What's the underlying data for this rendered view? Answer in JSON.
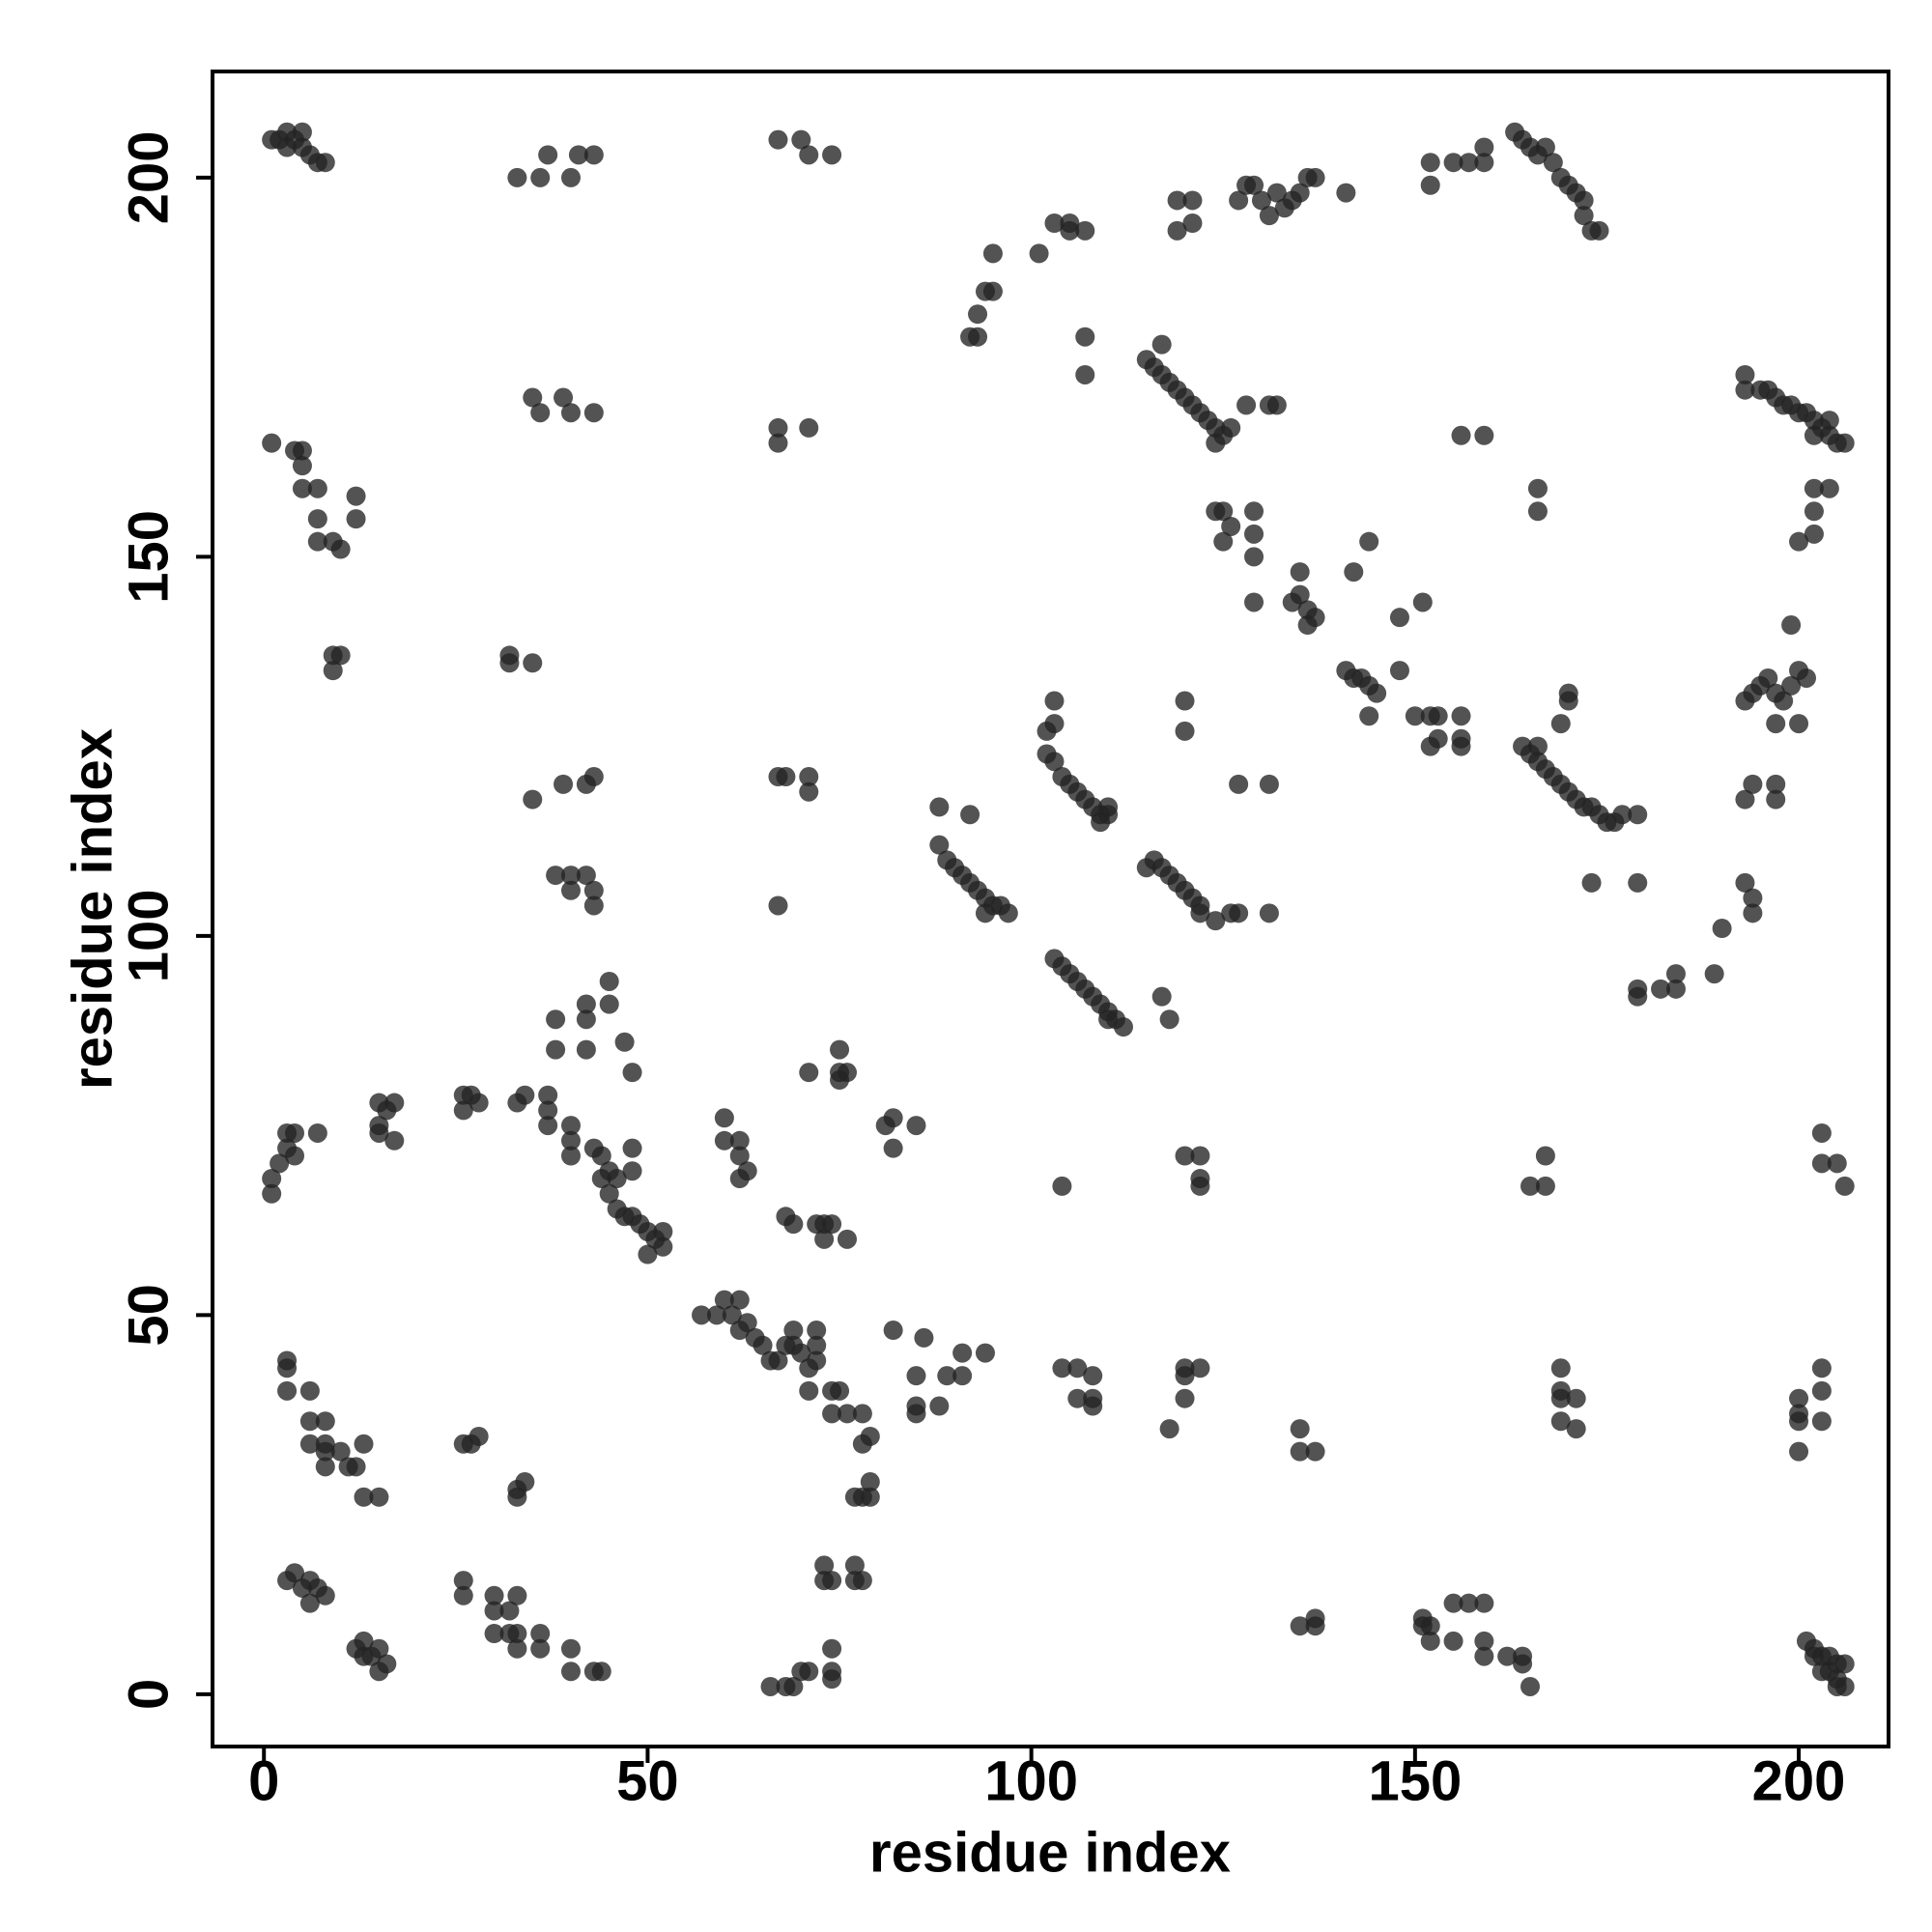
{
  "chart_data": {
    "type": "scatter",
    "x_label": "residue index",
    "y_label": "residue index",
    "xlim": [
      -6.7,
      211.7
    ],
    "ylim": [
      -6.9,
      214.0
    ],
    "xticks": [
      0,
      50,
      100,
      150,
      200
    ],
    "yticks": [
      0,
      50,
      100,
      150,
      200
    ],
    "grid": false,
    "series": [
      {
        "color": "#222222",
        "x": [
          1,
          2,
          3,
          4,
          5,
          6,
          7,
          8,
          3,
          5,
          33,
          36,
          37,
          40,
          41,
          43,
          67,
          70,
          71,
          74,
          92,
          93,
          93,
          94,
          95,
          95,
          101,
          103,
          105,
          105,
          107,
          107,
          107,
          119,
          121,
          119,
          121,
          127,
          128,
          129,
          130,
          131,
          132,
          133,
          134,
          135,
          136,
          137,
          141,
          152,
          152,
          155,
          157,
          159,
          159,
          163,
          164,
          165,
          166,
          167,
          168,
          169,
          170,
          171,
          172,
          173,
          174,
          172,
          1,
          4,
          5,
          5,
          5,
          7,
          7,
          7,
          9,
          10,
          12,
          12,
          9,
          10,
          9,
          35,
          36,
          39,
          40,
          43,
          67,
          67,
          71,
          115,
          116,
          117,
          117,
          118,
          119,
          120,
          121,
          122,
          123,
          124,
          125,
          124,
          126,
          128,
          131,
          132,
          193,
          193,
          195,
          196,
          197,
          198,
          199,
          200,
          201,
          202,
          203,
          204,
          205,
          206,
          202,
          204,
          156,
          159,
          166,
          166,
          202,
          204,
          202,
          202,
          200,
          124,
          125,
          126,
          125,
          129,
          129,
          129,
          129,
          134,
          135,
          136,
          136,
          137,
          135,
          142,
          144,
          141,
          142,
          143,
          144,
          145,
          144,
          148,
          148,
          150,
          152,
          153,
          152,
          153,
          156,
          156,
          156,
          151,
          164,
          165,
          166,
          166,
          167,
          168,
          169,
          170,
          171,
          172,
          173,
          174,
          175,
          176,
          177,
          179,
          169,
          170,
          170,
          173,
          179,
          193,
          194,
          195,
          196,
          197,
          198,
          199,
          200,
          201,
          197,
          200,
          199,
          193,
          194,
          197,
          197,
          193,
          194,
          194,
          190,
          189,
          179,
          179,
          182,
          184,
          184,
          103,
          103,
          102,
          102,
          103,
          104,
          105,
          106,
          107,
          108,
          109,
          110,
          110,
          109,
          120,
          120,
          88,
          89,
          90,
          91,
          92,
          93,
          94,
          95,
          96,
          97,
          94,
          88,
          92,
          115,
          116,
          117,
          118,
          119,
          120,
          121,
          122,
          122,
          124,
          126,
          127,
          131,
          127,
          131,
          103,
          104,
          105,
          106,
          107,
          108,
          109,
          110,
          111,
          112,
          110,
          117,
          118,
          120,
          122,
          122,
          122,
          104,
          1,
          1,
          2,
          3,
          3,
          4,
          4,
          7,
          15,
          16,
          17,
          15,
          17,
          15,
          26,
          26,
          27,
          28,
          33,
          34,
          37,
          37,
          37,
          40,
          40,
          40,
          38,
          38,
          42,
          42,
          42,
          45,
          45,
          47,
          48,
          43,
          44,
          44,
          45,
          45,
          46,
          46,
          47,
          48,
          49,
          50,
          51,
          52,
          52,
          50,
          48,
          48,
          32,
          32,
          35,
          35,
          39,
          42,
          43,
          38,
          40,
          40,
          42,
          43,
          43,
          67,
          67,
          68,
          71,
          71,
          60,
          60,
          62,
          62,
          63,
          62,
          68,
          69,
          72,
          73,
          73,
          76,
          74,
          71,
          75,
          75,
          75,
          76,
          81,
          82,
          82,
          85,
          57,
          59,
          60,
          61,
          62,
          62,
          63,
          64,
          65,
          66,
          67,
          68,
          69,
          69,
          70,
          71,
          72,
          72,
          72,
          71,
          74,
          75,
          74,
          76,
          78,
          78,
          79,
          78,
          79,
          77,
          79,
          82,
          86,
          85,
          85,
          85,
          88,
          89,
          91,
          91,
          94,
          104,
          106,
          106,
          108,
          108,
          108,
          118,
          120,
          120,
          120,
          122,
          135,
          135,
          137,
          169,
          169,
          169,
          169,
          171,
          171,
          165,
          167,
          167,
          200,
          200,
          200,
          200,
          203,
          203,
          203,
          203,
          203,
          205,
          206,
          3,
          3,
          3,
          6,
          6,
          6,
          8,
          8,
          8,
          8,
          10,
          11,
          13,
          12,
          13,
          15,
          26,
          27,
          28,
          33,
          33,
          34,
          3,
          4,
          5,
          6,
          6,
          7,
          8,
          12,
          13,
          13,
          14,
          15,
          15,
          16,
          26,
          26,
          30,
          30,
          30,
          32,
          32,
          33,
          33,
          33,
          36,
          36,
          40,
          40,
          43,
          44,
          66,
          68,
          69,
          70,
          71,
          74,
          74,
          74,
          73,
          73,
          74,
          77,
          77,
          78,
          135,
          137,
          137,
          151,
          151,
          152,
          152,
          155,
          155,
          157,
          159,
          159,
          159,
          162,
          164,
          164,
          165,
          201,
          202,
          202,
          203,
          203,
          204,
          204,
          205,
          205,
          206,
          206,
          205
        ],
        "values": [
          205,
          205,
          204,
          205,
          204,
          203,
          202,
          202,
          206,
          206,
          200,
          200,
          203,
          200,
          203,
          203,
          205,
          205,
          203,
          203,
          179,
          179,
          182,
          185,
          185,
          190,
          190,
          194,
          193,
          194,
          193,
          179,
          174,
          197,
          197,
          193,
          194,
          197,
          199,
          199,
          197,
          195,
          198,
          196,
          197,
          198,
          200,
          200,
          198,
          202,
          199,
          202,
          202,
          204,
          202,
          206,
          205,
          204,
          203,
          204,
          202,
          200,
          199,
          198,
          197,
          193,
          193,
          195,
          165,
          164,
          164,
          162,
          159,
          159,
          155,
          152,
          152,
          151,
          158,
          155,
          137,
          137,
          135,
          171,
          169,
          171,
          169,
          169,
          167,
          165,
          167,
          176,
          175,
          174,
          178,
          173,
          172,
          171,
          170,
          169,
          168,
          167,
          166,
          165,
          167,
          170,
          170,
          170,
          174,
          172,
          172,
          172,
          171,
          170,
          170,
          169,
          169,
          168,
          167,
          166,
          165,
          165,
          166,
          168,
          166,
          166,
          159,
          156,
          159,
          159,
          156,
          153,
          152,
          156,
          156,
          154,
          152,
          156,
          153,
          150,
          144,
          144,
          145,
          143,
          141,
          142,
          148,
          148,
          152,
          135,
          134,
          134,
          133,
          132,
          129,
          135,
          142,
          129,
          129,
          129,
          125,
          126,
          126,
          129,
          125,
          144,
          125,
          124,
          125,
          123,
          122,
          121,
          120,
          119,
          118,
          117,
          117,
          116,
          115,
          115,
          116,
          116,
          128,
          131,
          132,
          107,
          107,
          131,
          132,
          133,
          134,
          132,
          131,
          133,
          135,
          134,
          128,
          128,
          141,
          118,
          120,
          120,
          118,
          107,
          105,
          103,
          101,
          95,
          93,
          92,
          93,
          93,
          95,
          131,
          128,
          127,
          124,
          123,
          121,
          120,
          119,
          118,
          117,
          116,
          116,
          117,
          115,
          131,
          127,
          112,
          110,
          109,
          108,
          107,
          106,
          105,
          104,
          104,
          103,
          103,
          117,
          116,
          109,
          110,
          109,
          108,
          107,
          106,
          105,
          104,
          103,
          102,
          103,
          103,
          103,
          120,
          120,
          97,
          96,
          95,
          94,
          93,
          92,
          91,
          90,
          89,
          88,
          89,
          92,
          89,
          71,
          71,
          67,
          68,
          67,
          68,
          66,
          70,
          74,
          72,
          71,
          74,
          74,
          78,
          77,
          78,
          74,
          73,
          75,
          79,
          77,
          79,
          78,
          78,
          79,
          79,
          77,
          75,
          75,
          73,
          71,
          85,
          89,
          91,
          89,
          85,
          94,
          91,
          86,
          82,
          72,
          71,
          68,
          69,
          66,
          68,
          64,
          63,
          63,
          62,
          61,
          60,
          61,
          59,
          58,
          72,
          69,
          137,
          136,
          136,
          118,
          120,
          120,
          121,
          108,
          108,
          106,
          108,
          106,
          104,
          104,
          121,
          121,
          121,
          119,
          76,
          73,
          73,
          71,
          69,
          68,
          63,
          62,
          62,
          62,
          60,
          60,
          62,
          82,
          82,
          85,
          81,
          82,
          75,
          76,
          72,
          75,
          50,
          50,
          52,
          50,
          52,
          48,
          49,
          47,
          46,
          44,
          44,
          46,
          48,
          46,
          45,
          43,
          46,
          48,
          44,
          40,
          40,
          40,
          37,
          37,
          37,
          33,
          34,
          26,
          26,
          26,
          28,
          48,
          47,
          42,
          38,
          37,
          38,
          42,
          42,
          45,
          45,
          43,
          43,
          39,
          42,
          39,
          38,
          35,
          39,
          42,
          43,
          43,
          35,
          32,
          32,
          43,
          40,
          39,
          36,
          39,
          35,
          67,
          67,
          71,
          39,
          37,
          36,
          32,
          43,
          40,
          36,
          74,
          70,
          70,
          67,
          44,
          43,
          40,
          40,
          36,
          33,
          36,
          33,
          32,
          30,
          32,
          30,
          33,
          30,
          26,
          26,
          33,
          33,
          34,
          26,
          27,
          28,
          15,
          16,
          14,
          12,
          15,
          14,
          13,
          6,
          5,
          7,
          5,
          6,
          3,
          4,
          15,
          13,
          13,
          11,
          8,
          11,
          8,
          13,
          8,
          6,
          8,
          6,
          6,
          3,
          3,
          3,
          1,
          1,
          1,
          3,
          3,
          3,
          6,
          2,
          15,
          17,
          15,
          15,
          17,
          15,
          9,
          9,
          10,
          10,
          9,
          7,
          9,
          7,
          12,
          12,
          12,
          7,
          5,
          5,
          5,
          4,
          1,
          7,
          6,
          5,
          5,
          3,
          5,
          3,
          4,
          2,
          4,
          1,
          1
        ]
      }
    ]
  }
}
